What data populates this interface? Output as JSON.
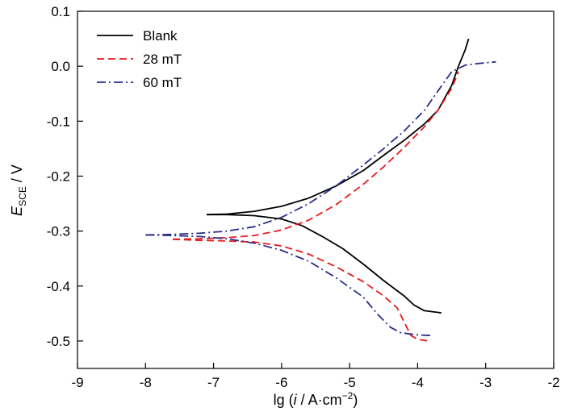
{
  "chart_data": {
    "type": "line",
    "title": "",
    "xlabel": {
      "prefix": "lg (",
      "italic": "i",
      "middle": " / A·cm",
      "superscript": "−2",
      "suffix": ")"
    },
    "ylabel": {
      "italic": "E",
      "subscript": "SCE",
      "suffix": " / V"
    },
    "xlim": [
      -9,
      -2
    ],
    "ylim": [
      -0.55,
      0.1
    ],
    "xticks": [
      -9,
      -8,
      -7,
      -6,
      -5,
      -4,
      -3,
      -2
    ],
    "xtick_labels": [
      "-9",
      "-8",
      "-7",
      "-6",
      "-5",
      "-4",
      "-3",
      "-2"
    ],
    "yticks": [
      0.1,
      0.0,
      -0.1,
      -0.2,
      -0.3,
      -0.4,
      -0.5
    ],
    "ytick_labels": [
      "0.1",
      "0.0",
      "-0.1",
      "-0.2",
      "-0.3",
      "-0.4",
      "-0.5"
    ],
    "grid": false,
    "legend_position": "top-left",
    "series": [
      {
        "name": "Blank",
        "color": "#000000",
        "style": "solid",
        "cathodic": [
          [
            -7.1,
            -0.27
          ],
          [
            -6.8,
            -0.27
          ],
          [
            -6.4,
            -0.272
          ],
          [
            -6.0,
            -0.278
          ],
          [
            -5.7,
            -0.29
          ],
          [
            -5.4,
            -0.31
          ],
          [
            -5.1,
            -0.332
          ],
          [
            -4.8,
            -0.36
          ],
          [
            -4.5,
            -0.39
          ],
          [
            -4.2,
            -0.418
          ],
          [
            -4.05,
            -0.435
          ],
          [
            -3.9,
            -0.445
          ],
          [
            -3.7,
            -0.448
          ],
          [
            -3.65,
            -0.449
          ]
        ],
        "anodic": [
          [
            -7.1,
            -0.27
          ],
          [
            -6.8,
            -0.269
          ],
          [
            -6.4,
            -0.264
          ],
          [
            -6.0,
            -0.255
          ],
          [
            -5.6,
            -0.24
          ],
          [
            -5.2,
            -0.218
          ],
          [
            -4.8,
            -0.19
          ],
          [
            -4.5,
            -0.162
          ],
          [
            -4.2,
            -0.135
          ],
          [
            -3.9,
            -0.105
          ],
          [
            -3.7,
            -0.08
          ],
          [
            -3.5,
            -0.035
          ],
          [
            -3.4,
            0.0
          ],
          [
            -3.3,
            0.03
          ],
          [
            -3.25,
            0.05
          ]
        ]
      },
      {
        "name": "28 mT",
        "color": "#e8191c",
        "style": "dashed",
        "cathodic": [
          [
            -7.6,
            -0.315
          ],
          [
            -7.2,
            -0.317
          ],
          [
            -6.8,
            -0.318
          ],
          [
            -6.4,
            -0.32
          ],
          [
            -6.0,
            -0.327
          ],
          [
            -5.6,
            -0.342
          ],
          [
            -5.2,
            -0.365
          ],
          [
            -4.8,
            -0.392
          ],
          [
            -4.5,
            -0.418
          ],
          [
            -4.3,
            -0.44
          ],
          [
            -4.2,
            -0.465
          ],
          [
            -4.1,
            -0.49
          ],
          [
            -4.0,
            -0.497
          ],
          [
            -3.85,
            -0.5
          ]
        ],
        "anodic": [
          [
            -7.6,
            -0.315
          ],
          [
            -7.2,
            -0.314
          ],
          [
            -6.8,
            -0.312
          ],
          [
            -6.4,
            -0.308
          ],
          [
            -6.0,
            -0.298
          ],
          [
            -5.6,
            -0.28
          ],
          [
            -5.2,
            -0.252
          ],
          [
            -4.8,
            -0.215
          ],
          [
            -4.5,
            -0.183
          ],
          [
            -4.2,
            -0.148
          ],
          [
            -3.9,
            -0.11
          ],
          [
            -3.7,
            -0.08
          ],
          [
            -3.5,
            -0.04
          ],
          [
            -3.4,
            -0.01
          ]
        ]
      },
      {
        "name": "60 mT",
        "color": "#2b2e8a",
        "style": "dashdot",
        "cathodic": [
          [
            -8.0,
            -0.307
          ],
          [
            -7.6,
            -0.308
          ],
          [
            -7.2,
            -0.31
          ],
          [
            -6.8,
            -0.314
          ],
          [
            -6.4,
            -0.322
          ],
          [
            -6.0,
            -0.335
          ],
          [
            -5.6,
            -0.355
          ],
          [
            -5.2,
            -0.385
          ],
          [
            -4.8,
            -0.42
          ],
          [
            -4.6,
            -0.45
          ],
          [
            -4.4,
            -0.475
          ],
          [
            -4.25,
            -0.485
          ],
          [
            -4.0,
            -0.489
          ],
          [
            -3.8,
            -0.49
          ]
        ],
        "anodic": [
          [
            -8.0,
            -0.307
          ],
          [
            -7.6,
            -0.306
          ],
          [
            -7.2,
            -0.304
          ],
          [
            -6.8,
            -0.3
          ],
          [
            -6.4,
            -0.292
          ],
          [
            -6.0,
            -0.275
          ],
          [
            -5.6,
            -0.25
          ],
          [
            -5.2,
            -0.218
          ],
          [
            -4.8,
            -0.18
          ],
          [
            -4.5,
            -0.15
          ],
          [
            -4.2,
            -0.118
          ],
          [
            -3.9,
            -0.08
          ],
          [
            -3.7,
            -0.045
          ],
          [
            -3.5,
            -0.01
          ],
          [
            -3.3,
            0.002
          ],
          [
            -3.1,
            0.005
          ],
          [
            -2.85,
            0.008
          ]
        ]
      }
    ]
  }
}
